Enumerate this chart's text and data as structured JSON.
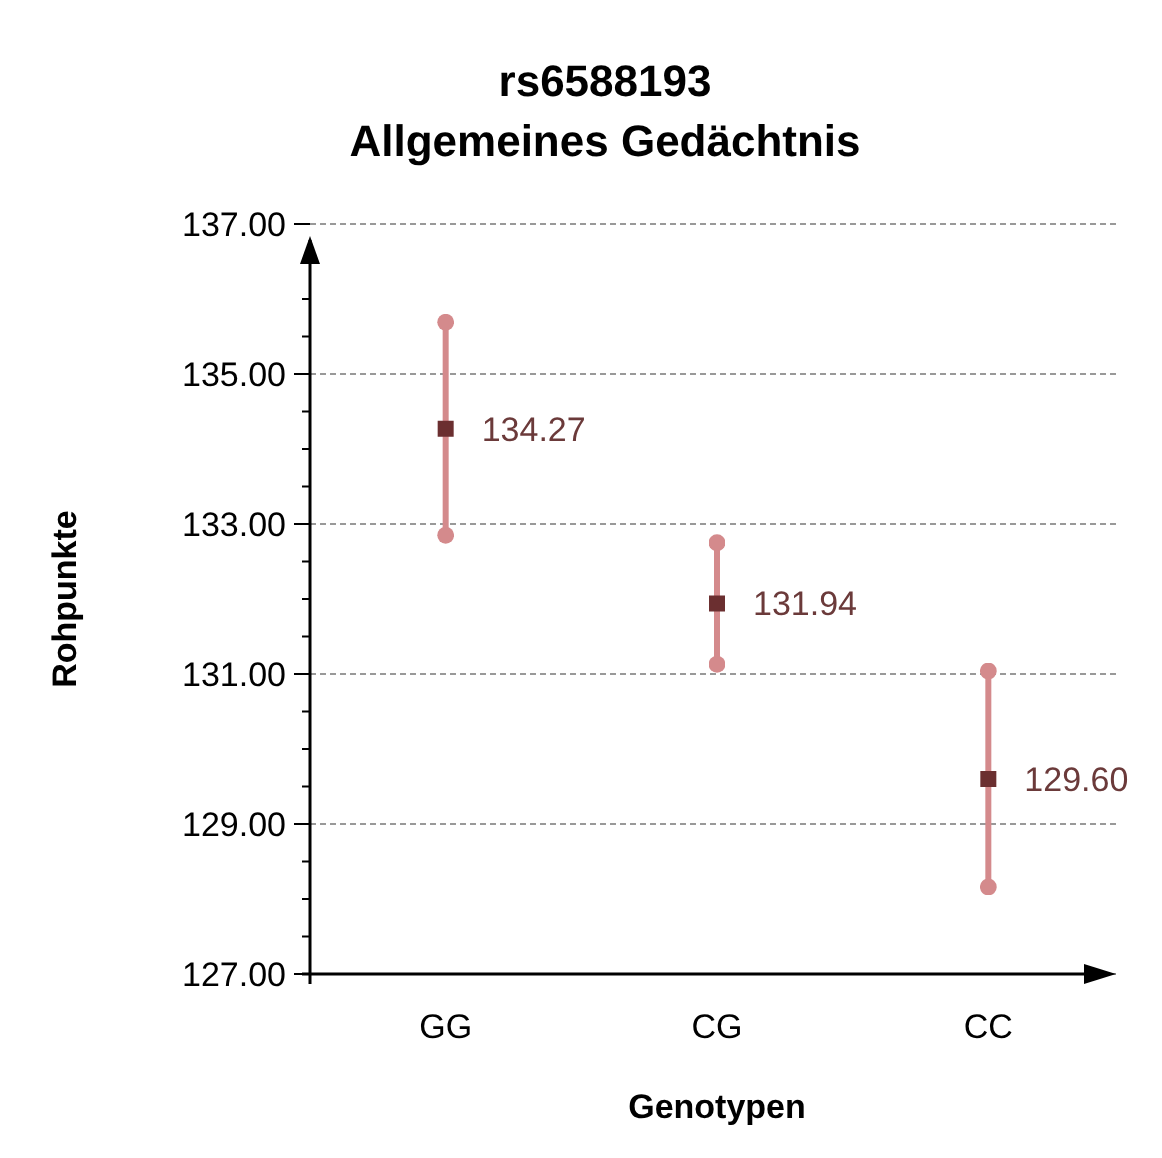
{
  "chart_data": {
    "type": "scatter",
    "title": "rs6588193\nAllgemeines Gedächtnis",
    "xlabel": "Genotypen",
    "ylabel": "Rohpunkte",
    "categories": [
      "GG",
      "CG",
      "CC"
    ],
    "series": [
      {
        "color": "#6b2f30",
        "values": [
          134.27,
          131.94,
          129.6
        ],
        "errors": [
          1.42,
          0.81,
          1.44
        ],
        "value_labels": [
          "134.27",
          "131.94",
          "129.60"
        ]
      }
    ],
    "ylim": [
      127,
      137
    ],
    "yticks": [
      {
        "value": 127,
        "label": "127.00"
      },
      {
        "value": 127.5,
        "label": null
      },
      {
        "value": 128,
        "label": null
      },
      {
        "value": 128.5,
        "label": null
      },
      {
        "value": 129,
        "label": "129.00"
      },
      {
        "value": 129.5,
        "label": null
      },
      {
        "value": 130,
        "label": null
      },
      {
        "value": 130.5,
        "label": null
      },
      {
        "value": 131,
        "label": "131.00"
      },
      {
        "value": 131.5,
        "label": null
      },
      {
        "value": 132,
        "label": null
      },
      {
        "value": 132.5,
        "label": null
      },
      {
        "value": 133,
        "label": "133.00"
      },
      {
        "value": 133.5,
        "label": null
      },
      {
        "value": 134,
        "label": null
      },
      {
        "value": 134.5,
        "label": null
      },
      {
        "value": 135,
        "label": "135.00"
      },
      {
        "value": 135.5,
        "label": null
      },
      {
        "value": 136,
        "label": null
      },
      {
        "value": 136.5,
        "label": null
      },
      {
        "value": 137,
        "label": "137.00"
      }
    ],
    "grid": "y",
    "marker": "square"
  }
}
